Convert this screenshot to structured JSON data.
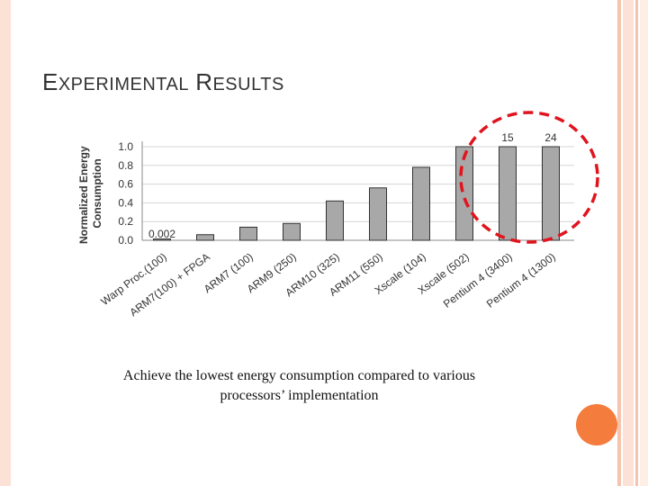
{
  "slide": {
    "title_first_letter_1": "E",
    "title_rest_1": "XPERIMENTAL",
    "title_first_letter_2": "R",
    "title_rest_2": "ESULTS",
    "caption_line1": "Achieve the lowest energy consumption compared to various",
    "caption_line2": "processors’ implementation"
  },
  "colors": {
    "bar_fill": "#a8a8a8",
    "highlight_ellipse": "#e0141e",
    "accent_circle": "#f47c3c"
  },
  "chart_data": {
    "type": "bar",
    "title": "",
    "xlabel": "",
    "ylabel": "Normalized Energy Consumption",
    "ylim": [
      0,
      1.0
    ],
    "yticks": [
      "0.0",
      "0.2",
      "0.4",
      "0.6",
      "0.8",
      "1.0"
    ],
    "grid": true,
    "categories": [
      "Warp Proc.(100)",
      "ARM7(100) + FPGA",
      "ARM7 (100)",
      "ARM9 (250)",
      "ARM10 (325)",
      "ARM11 (550)",
      "Xscale (104)",
      "Xscale (502)",
      "Pentium 4 (3400)",
      "Pentium 4 (1300)"
    ],
    "values": [
      0.002,
      0.06,
      0.14,
      0.18,
      0.42,
      0.56,
      0.78,
      1.0,
      15,
      24
    ],
    "data_labels": [
      "0.002",
      "",
      "",
      "",
      "",
      "",
      "",
      "",
      "15",
      "24"
    ],
    "highlighted_categories": [
      "Pentium 4 (3400)",
      "Pentium 4 (1300)"
    ]
  }
}
